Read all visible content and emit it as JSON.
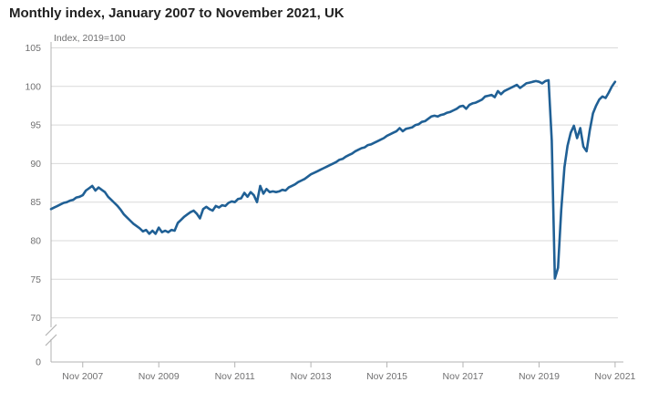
{
  "header": {
    "title": "Monthly index, January 2007 to November 2021, UK"
  },
  "chart_data": {
    "type": "line",
    "title": "Monthly index, January 2007 to November 2021, UK",
    "unit_label": "Index, 2019=100",
    "xlabel": "",
    "ylabel": "Index, 2019=100",
    "x_tick_labels": [
      "Nov 2007",
      "Nov 2009",
      "Nov 2011",
      "Nov 2013",
      "Nov 2015",
      "Nov 2017",
      "Nov 2019",
      "Nov 2021"
    ],
    "x_tick_month_indices": [
      10,
      34,
      58,
      82,
      106,
      130,
      154,
      178
    ],
    "y_ticks": [
      105,
      100,
      95,
      90,
      85,
      80,
      75,
      70,
      0
    ],
    "ylim": [
      70,
      105
    ],
    "y_axis_break_between": [
      0,
      70
    ],
    "grid": "horizontal",
    "legend": "none",
    "series": [
      {
        "name": "Monthly index, UK",
        "color": "#206095",
        "frequency": "monthly",
        "start_month": "2007-01",
        "end_month": "2021-11",
        "values": [
          84.1,
          84.3,
          84.5,
          84.7,
          84.9,
          85.0,
          85.2,
          85.3,
          85.6,
          85.7,
          85.9,
          86.5,
          86.8,
          87.1,
          86.5,
          86.9,
          86.6,
          86.3,
          85.7,
          85.3,
          84.9,
          84.5,
          84.0,
          83.4,
          83.0,
          82.6,
          82.2,
          81.9,
          81.6,
          81.2,
          81.4,
          80.9,
          81.3,
          80.9,
          81.7,
          81.1,
          81.3,
          81.1,
          81.4,
          81.3,
          82.3,
          82.7,
          83.1,
          83.4,
          83.7,
          83.9,
          83.5,
          82.9,
          84.1,
          84.4,
          84.1,
          83.9,
          84.5,
          84.3,
          84.6,
          84.5,
          84.9,
          85.1,
          85.0,
          85.4,
          85.5,
          86.2,
          85.7,
          86.3,
          85.9,
          85.0,
          87.1,
          86.1,
          86.7,
          86.3,
          86.4,
          86.3,
          86.4,
          86.6,
          86.5,
          86.9,
          87.1,
          87.3,
          87.6,
          87.8,
          88.0,
          88.3,
          88.6,
          88.8,
          89.0,
          89.2,
          89.4,
          89.6,
          89.8,
          90.0,
          90.2,
          90.5,
          90.6,
          90.9,
          91.1,
          91.3,
          91.6,
          91.8,
          92.0,
          92.1,
          92.4,
          92.5,
          92.7,
          92.9,
          93.1,
          93.3,
          93.6,
          93.8,
          94.0,
          94.2,
          94.6,
          94.2,
          94.5,
          94.6,
          94.7,
          95.0,
          95.1,
          95.4,
          95.5,
          95.8,
          96.1,
          96.2,
          96.1,
          96.3,
          96.4,
          96.6,
          96.7,
          96.9,
          97.1,
          97.4,
          97.5,
          97.1,
          97.6,
          97.8,
          97.9,
          98.1,
          98.3,
          98.7,
          98.8,
          98.9,
          98.6,
          99.4,
          99.0,
          99.4,
          99.6,
          99.8,
          100.0,
          100.2,
          99.8,
          100.1,
          100.4,
          100.5,
          100.6,
          100.7,
          100.6,
          100.4,
          100.7,
          100.8,
          93.0,
          75.1,
          76.5,
          84.0,
          89.5,
          92.3,
          94.0,
          94.9,
          93.3,
          94.6,
          92.2,
          91.6,
          94.3,
          96.5,
          97.5,
          98.3,
          98.7,
          98.5,
          99.2,
          100.0,
          100.6
        ]
      }
    ]
  },
  "colors": {
    "line": "#206095",
    "grid": "#d9d9d9",
    "axis": "#b3b3b3",
    "muted_text": "#707071",
    "title_text": "#222222"
  }
}
